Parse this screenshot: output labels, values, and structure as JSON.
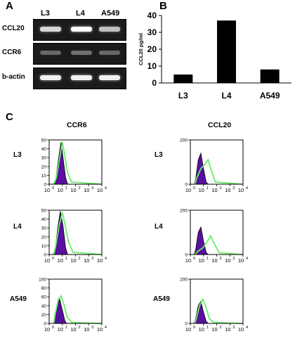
{
  "panels": {
    "a": {
      "letter": "A",
      "lanes": [
        "L3",
        "L4",
        "A549"
      ],
      "rows": [
        {
          "label": "CCL20",
          "intensity": [
            0.85,
            1.0,
            0.75
          ]
        },
        {
          "label": "CCR6",
          "intensity": [
            0.3,
            0.35,
            0.3
          ]
        },
        {
          "label": "b-actin",
          "intensity": [
            0.95,
            0.95,
            0.95
          ]
        }
      ]
    },
    "b": {
      "letter": "B"
    },
    "c": {
      "letter": "C",
      "columns": [
        "CCR6",
        "CCL20"
      ],
      "rows": [
        "L3",
        "L4",
        "A549"
      ],
      "x_ticks": [
        "10",
        "10",
        "10",
        "10",
        "10"
      ],
      "x_tick_exponents": [
        "0",
        "1",
        "2",
        "3",
        "4"
      ],
      "y_ticks": {
        "ccr6_l3": [
          "0",
          "10",
          "20",
          "30",
          "40",
          "50"
        ],
        "ccr6_l4": [
          "0",
          "10",
          "20",
          "30",
          "40",
          "50"
        ],
        "ccr6_a549": [
          "0",
          "20",
          "40",
          "60",
          "80",
          "100"
        ],
        "ccl20": [
          "0",
          "200"
        ]
      }
    }
  },
  "chart_data": {
    "type": "bar",
    "categories": [
      "L3",
      "L4",
      "A549"
    ],
    "values": [
      5,
      37,
      8
    ],
    "ylabel": "CCL20 pg/ml",
    "ylim": [
      0,
      40
    ],
    "yticks": [
      0,
      10,
      20,
      30,
      40
    ],
    "title": "",
    "xlabel": ""
  },
  "colors": {
    "isotype_fill": "#5a0fa0",
    "stain_line": "#66ee66"
  }
}
